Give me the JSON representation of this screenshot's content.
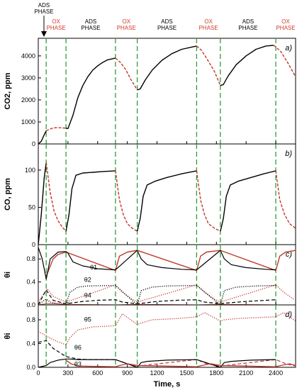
{
  "phases": {
    "ads_label_1": "ADS",
    "ads_label_2": "PHASE",
    "ox_label_1": "OX",
    "ox_label_2": "PHASE"
  },
  "colors": {
    "line_primary": "#000000",
    "line_ox": "#c0392b",
    "phase_divider": "#2e9e3a",
    "phase_label_red": "#d23b2b"
  },
  "chart_data": [
    {
      "type": "line",
      "panel_label": "a)",
      "ylabel": "CO2, ppm",
      "ylim": [
        0,
        4800
      ],
      "yticks": [
        "0",
        "1000",
        "2000",
        "3000",
        "4000"
      ],
      "xlim": [
        0,
        2600
      ],
      "series": [
        {
          "style": "ads",
          "x": [
            0,
            30,
            60,
            80
          ],
          "y": [
            0,
            120,
            420,
            600
          ]
        },
        {
          "style": "ox",
          "x": [
            80,
            130,
            180,
            230,
            280
          ],
          "y": [
            600,
            700,
            740,
            735,
            720
          ]
        },
        {
          "style": "ads",
          "x": [
            280,
            300,
            350,
            400,
            450,
            500,
            550,
            600,
            650,
            700,
            780
          ],
          "y": [
            720,
            700,
            1300,
            2100,
            2650,
            3050,
            3350,
            3550,
            3700,
            3820,
            3900
          ]
        },
        {
          "style": "ox",
          "x": [
            780,
            830,
            880,
            940,
            1000
          ],
          "y": [
            3900,
            3700,
            3400,
            2900,
            2450
          ]
        },
        {
          "style": "ads",
          "x": [
            1000,
            1030,
            1080,
            1150,
            1250,
            1350,
            1450,
            1550,
            1600
          ],
          "y": [
            2450,
            2500,
            2900,
            3350,
            3800,
            4100,
            4300,
            4400,
            4450
          ]
        },
        {
          "style": "ox",
          "x": [
            1600,
            1650,
            1700,
            1780,
            1840
          ],
          "y": [
            4450,
            4250,
            3900,
            3300,
            2650
          ]
        },
        {
          "style": "ads",
          "x": [
            1840,
            1870,
            1920,
            2000,
            2100,
            2200,
            2300,
            2380
          ],
          "y": [
            2650,
            2700,
            3100,
            3600,
            4000,
            4300,
            4450,
            4480
          ]
        },
        {
          "style": "ox",
          "x": [
            2380,
            2450,
            2520,
            2600
          ],
          "y": [
            4480,
            4200,
            3700,
            3050
          ]
        }
      ]
    },
    {
      "type": "line",
      "panel_label": "b)",
      "ylabel": "CO, ppm",
      "ylim": [
        0,
        135
      ],
      "yticks": [
        "0",
        "50",
        "100"
      ],
      "xlim": [
        0,
        2600
      ],
      "series": [
        {
          "style": "ads",
          "x": [
            0,
            30,
            60,
            80
          ],
          "y": [
            0,
            40,
            90,
            110
          ]
        },
        {
          "style": "ox",
          "x": [
            80,
            120,
            160,
            200,
            240,
            280
          ],
          "y": [
            110,
            70,
            45,
            32,
            24,
            18
          ]
        },
        {
          "style": "ads",
          "x": [
            280,
            310,
            340,
            380,
            450,
            550,
            650,
            780
          ],
          "y": [
            18,
            40,
            75,
            93,
            96,
            97,
            98,
            99
          ]
        },
        {
          "style": "ox",
          "x": [
            780,
            820,
            860,
            900,
            950,
            1000
          ],
          "y": [
            99,
            60,
            40,
            28,
            22,
            18
          ]
        },
        {
          "style": "ads",
          "x": [
            1000,
            1030,
            1060,
            1100,
            1180,
            1300,
            1450,
            1600
          ],
          "y": [
            18,
            35,
            65,
            80,
            85,
            90,
            95,
            99
          ]
        },
        {
          "style": "ox",
          "x": [
            1600,
            1640,
            1680,
            1720,
            1780,
            1840
          ],
          "y": [
            99,
            60,
            40,
            28,
            22,
            18
          ]
        },
        {
          "style": "ads",
          "x": [
            1840,
            1870,
            1900,
            1940,
            2020,
            2150,
            2280,
            2400
          ],
          "y": [
            18,
            35,
            65,
            80,
            85,
            90,
            95,
            99
          ]
        },
        {
          "style": "ox",
          "x": [
            2400,
            2440,
            2490,
            2540,
            2600
          ],
          "y": [
            99,
            60,
            40,
            28,
            22
          ]
        }
      ]
    },
    {
      "type": "line",
      "panel_label": "c)",
      "ylabel": "θi",
      "ylim": [
        0,
        1.05
      ],
      "yticks": [
        "0.0",
        "0.4",
        "0.8"
      ],
      "xlim": [
        0,
        2600
      ],
      "annotations": [
        "θ1",
        "θ2",
        "θ4"
      ],
      "series": [
        {
          "style": "red-solid",
          "x": [
            80,
            150,
            200,
            280,
            780,
            820,
            900,
            1000,
            1600,
            1640,
            1700,
            1840,
            2400,
            2440,
            2500,
            2600
          ],
          "y": [
            0.5,
            0.8,
            0.88,
            0.92,
            0.6,
            0.85,
            0.92,
            0.95,
            0.6,
            0.85,
            0.92,
            0.95,
            0.6,
            0.85,
            0.92,
            0.95
          ]
        },
        {
          "style": "black-solid",
          "x": [
            0,
            40,
            80,
            120,
            200,
            280,
            300,
            350,
            450,
            600,
            780,
            1000,
            1040,
            1100,
            1250,
            1450,
            1600,
            1840,
            1880,
            1950,
            2100,
            2300,
            2400
          ],
          "y": [
            1.0,
            0.8,
            0.45,
            0.8,
            0.92,
            0.93,
            0.9,
            0.75,
            0.68,
            0.63,
            0.61,
            0.95,
            0.8,
            0.7,
            0.65,
            0.62,
            0.61,
            0.95,
            0.8,
            0.7,
            0.65,
            0.62,
            0.61
          ]
        },
        {
          "style": "red-dot",
          "x": [
            0,
            60,
            90,
            150,
            280,
            780,
            850,
            950,
            1000,
            1600,
            1680,
            1780,
            1840,
            2400,
            2480,
            2580
          ],
          "y": [
            0.05,
            0.2,
            0.28,
            0.15,
            0.05,
            0.35,
            0.22,
            0.1,
            0.05,
            0.35,
            0.22,
            0.1,
            0.05,
            0.35,
            0.22,
            0.1
          ]
        },
        {
          "style": "black-dot",
          "x": [
            0,
            60,
            80,
            120,
            200,
            280,
            320,
            400,
            500,
            780,
            1000,
            1040,
            1150,
            1300,
            1600,
            1840,
            1880,
            2000,
            2200,
            2400
          ],
          "y": [
            0,
            0.08,
            0.1,
            0.05,
            0.02,
            0.02,
            0.22,
            0.31,
            0.33,
            0.34,
            0.0,
            0.25,
            0.31,
            0.33,
            0.34,
            0.0,
            0.25,
            0.31,
            0.33,
            0.34
          ]
        },
        {
          "style": "black-dash",
          "x": [
            0,
            60,
            80,
            150,
            280,
            320,
            450,
            600,
            780,
            850,
            1000,
            1050,
            1200,
            1400,
            1600,
            1680,
            1840,
            1880,
            2100,
            2400
          ],
          "y": [
            0,
            0.2,
            0.26,
            0.08,
            0.02,
            0.03,
            0.06,
            0.08,
            0.09,
            0.05,
            0.02,
            0.03,
            0.06,
            0.08,
            0.09,
            0.05,
            0.02,
            0.03,
            0.06,
            0.09
          ]
        },
        {
          "style": "red-solid-low",
          "x": [
            0,
            80,
            150,
            280,
            780,
            1000,
            1600,
            1840,
            2400,
            2600
          ],
          "y": [
            0,
            0.02,
            0.02,
            0.01,
            0.0,
            0.01,
            0.0,
            0.01,
            0.0,
            0.0
          ]
        }
      ]
    },
    {
      "type": "line",
      "panel_label": "d)",
      "ylabel": "θi",
      "ylim": [
        0,
        1.05
      ],
      "yticks": [
        "0.0",
        "0.4",
        "0.8"
      ],
      "xlim": [
        0,
        2600
      ],
      "xlabel": "Time, s",
      "xticks": [
        "0",
        "300",
        "600",
        "900",
        "1200",
        "1500",
        "1800",
        "2100",
        "2400"
      ],
      "annotations": [
        "θ5",
        "θ6",
        "θ3"
      ],
      "series": [
        {
          "style": "red-dot",
          "x": [
            0,
            60,
            120,
            200,
            280,
            320,
            400,
            550,
            780,
            850,
            1000,
            1050,
            1150,
            1400,
            1600,
            1680,
            1840,
            1880,
            2000,
            2250,
            2400,
            2480,
            2600
          ],
          "y": [
            0.6,
            0.55,
            0.49,
            0.43,
            0.38,
            0.5,
            0.63,
            0.68,
            0.7,
            0.9,
            0.72,
            0.75,
            0.8,
            0.82,
            0.85,
            0.92,
            0.78,
            0.8,
            0.82,
            0.84,
            0.85,
            0.92,
            0.78
          ]
        },
        {
          "style": "black-dash",
          "x": [
            0,
            80,
            150,
            280,
            400,
            500,
            780
          ],
          "y": [
            0.42,
            0.45,
            0.32,
            0.18,
            0.14,
            0.13,
            0.13
          ]
        },
        {
          "style": "red-dash",
          "x": [
            780,
            900,
            1000,
            1600,
            1700,
            1840,
            2400,
            2500,
            2600
          ],
          "y": [
            0.13,
            0.06,
            0.02,
            0.13,
            0.06,
            0.02,
            0.13,
            0.06,
            0.02
          ]
        },
        {
          "style": "black-solid",
          "x": [
            0,
            80,
            120,
            200,
            280,
            320,
            400,
            500,
            780,
            1000,
            1040,
            1100,
            1300,
            1600,
            1840,
            1880,
            1950,
            2150,
            2400
          ],
          "y": [
            0,
            0.03,
            0.08,
            0.12,
            0.14,
            0.14,
            0.13,
            0.13,
            0.13,
            0.0,
            0.08,
            0.1,
            0.12,
            0.13,
            0.0,
            0.08,
            0.1,
            0.12,
            0.13
          ]
        },
        {
          "style": "red-solid",
          "x": [
            280,
            330,
            400,
            780,
            820,
            900,
            1000,
            1600,
            1650,
            1740,
            1840,
            2400,
            2450,
            2540,
            2600
          ],
          "y": [
            0.12,
            0.06,
            0.02,
            0.01,
            0.03,
            0.06,
            0.03,
            0.01,
            0.03,
            0.06,
            0.03,
            0.01,
            0.03,
            0.06,
            0.03
          ]
        }
      ]
    }
  ]
}
